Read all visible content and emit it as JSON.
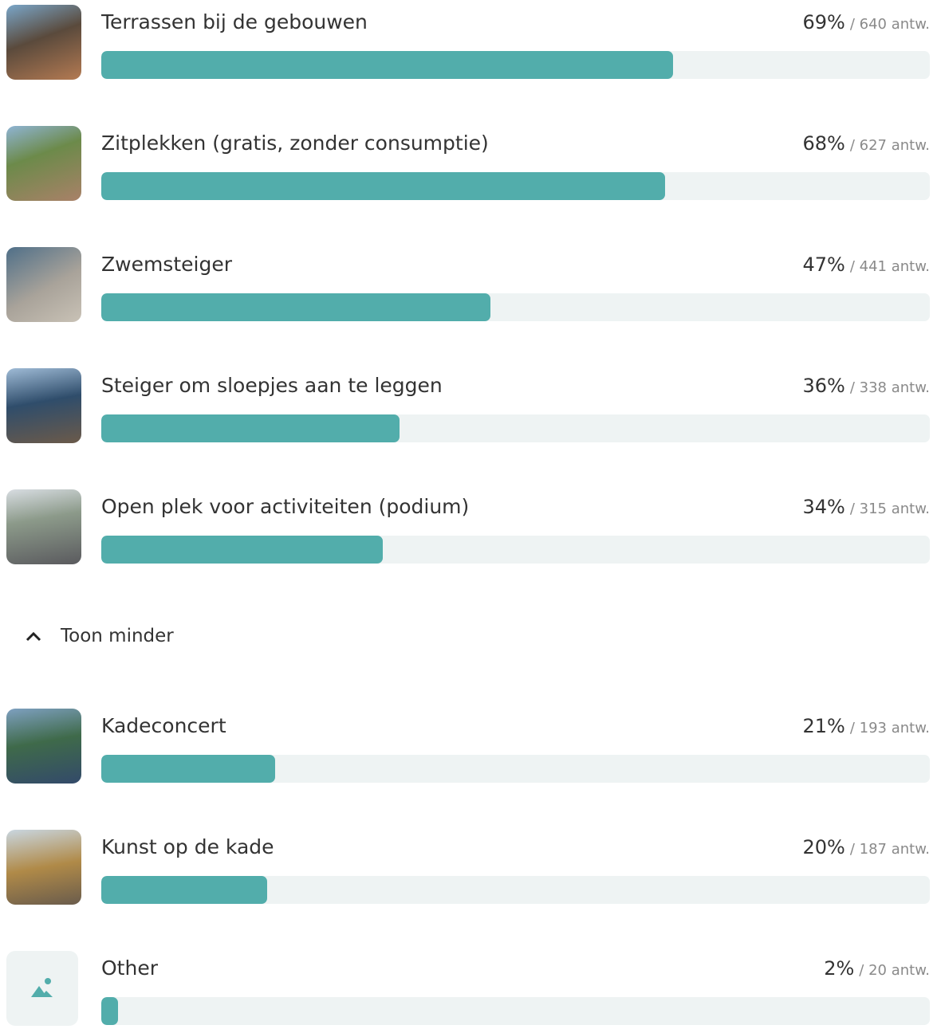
{
  "items": [
    {
      "label": "Terrassen bij de gebouwen",
      "value": 69,
      "value_label": "69%",
      "answers": "/ 640 antw."
    },
    {
      "label": "Zitplekken (gratis, zonder consumptie)",
      "value": 68,
      "value_label": "68%",
      "answers": "/ 627 antw."
    },
    {
      "label": "Zwemsteiger",
      "value": 47,
      "value_label": "47%",
      "answers": "/ 441 antw."
    },
    {
      "label": "Steiger om sloepjes aan te leggen",
      "value": 36,
      "value_label": "36%",
      "answers": "/ 338 antw."
    },
    {
      "label": "Open plek voor activiteiten (podium)",
      "value": 34,
      "value_label": "34%",
      "answers": "/ 315 antw."
    }
  ],
  "toggle": "Toon minder",
  "extra_items": [
    {
      "label": "Kadeconcert",
      "value": 21,
      "value_label": "21%",
      "answers": "/ 193 antw."
    },
    {
      "label": "Kunst op de kade",
      "value": 20,
      "value_label": "20%",
      "answers": "/ 187 antw."
    },
    {
      "label": "Other",
      "value": 2,
      "value_label": "2%",
      "answers": "/ 20 antw."
    }
  ]
}
